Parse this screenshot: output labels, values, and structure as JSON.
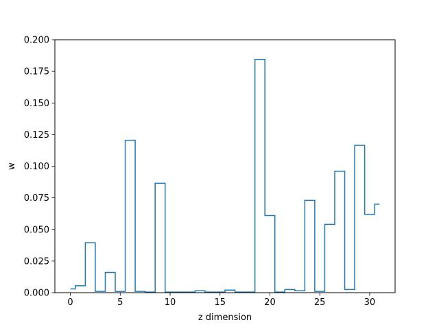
{
  "chart_data": {
    "type": "step",
    "title": "",
    "xlabel": "z dimension",
    "ylabel": "w",
    "xlim": [
      -1.55,
      32.55
    ],
    "ylim": [
      0,
      0.2
    ],
    "xticks": [
      0,
      5,
      10,
      15,
      20,
      25,
      30
    ],
    "xtick_labels": [
      "0",
      "5",
      "10",
      "15",
      "20",
      "25",
      "30"
    ],
    "yticks": [
      0,
      0.025,
      0.05,
      0.075,
      0.1,
      0.125,
      0.15,
      0.175,
      0.2
    ],
    "ytick_labels": [
      "0.000",
      "0.025",
      "0.050",
      "0.075",
      "0.100",
      "0.125",
      "0.150",
      "0.175",
      "0.200"
    ],
    "grid": false,
    "step_where": "mid",
    "line_color": "#1f77b4",
    "x": [
      0,
      1,
      2,
      3,
      4,
      5,
      6,
      7,
      8,
      9,
      10,
      11,
      12,
      13,
      14,
      15,
      16,
      17,
      18,
      19,
      20,
      21,
      22,
      23,
      24,
      25,
      26,
      27,
      28,
      29,
      30,
      31
    ],
    "y": [
      0.003,
      0.0055,
      0.0395,
      0.001,
      0.016,
      0.001,
      0.1205,
      0.001,
      0.0005,
      0.0865,
      0.0005,
      0.0005,
      0.0005,
      0.0015,
      0.0005,
      0.0005,
      0.002,
      0.0005,
      0.0005,
      0.1845,
      0.061,
      0.0005,
      0.0025,
      0.0015,
      0.073,
      0.001,
      0.054,
      0.096,
      0.0025,
      0.1165,
      0.062,
      0.07
    ]
  }
}
